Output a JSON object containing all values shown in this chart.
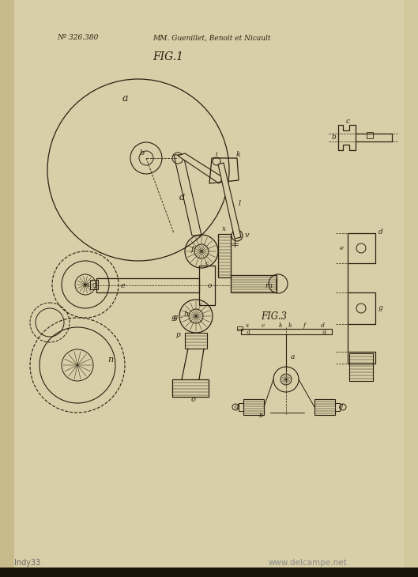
{
  "bg_color": "#d8cfa8",
  "page_bg": "#cfc89a",
  "line_color": "#2a2010",
  "title1": "Nº 326.380",
  "title2": "MM. Guenillet, Benoit et Nicault",
  "fig1_label": "FIG.1",
  "fig3_label": "FIG.3",
  "watermark": "www.delcampe.net",
  "credit": "Indy33"
}
